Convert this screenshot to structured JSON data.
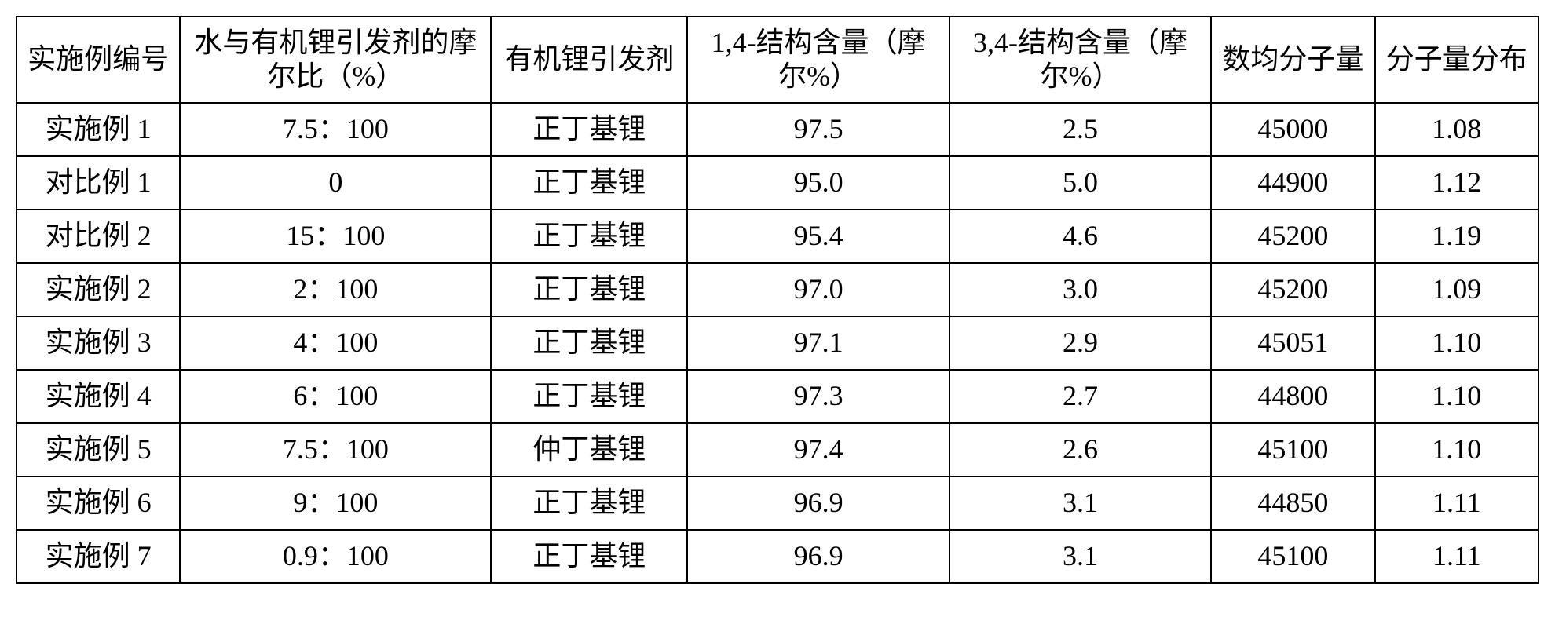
{
  "table": {
    "type": "table",
    "text_color": "#000000",
    "border_color": "#000000",
    "background_color": "#ffffff",
    "font_size_pt": 27,
    "column_widths_pct": [
      10,
      19,
      12,
      16,
      16,
      10,
      10
    ],
    "columns": [
      "实施例编号",
      "水与有机锂引发剂的摩尔比（%）",
      "有机锂引发剂",
      "1,4-结构含量（摩尔%）",
      "3,4-结构含量（摩尔%）",
      "数均分子量",
      "分子量分布"
    ],
    "rows": [
      [
        "实施例 1",
        "7.5：100",
        "正丁基锂",
        "97.5",
        "2.5",
        "45000",
        "1.08"
      ],
      [
        "对比例 1",
        "0",
        "正丁基锂",
        "95.0",
        "5.0",
        "44900",
        "1.12"
      ],
      [
        "对比例 2",
        "15：100",
        "正丁基锂",
        "95.4",
        "4.6",
        "45200",
        "1.19"
      ],
      [
        "实施例 2",
        "2：100",
        "正丁基锂",
        "97.0",
        "3.0",
        "45200",
        "1.09"
      ],
      [
        "实施例 3",
        "4：100",
        "正丁基锂",
        "97.1",
        "2.9",
        "45051",
        "1.10"
      ],
      [
        "实施例 4",
        "6：100",
        "正丁基锂",
        "97.3",
        "2.7",
        "44800",
        "1.10"
      ],
      [
        "实施例 5",
        "7.5：100",
        "仲丁基锂",
        "97.4",
        "2.6",
        "45100",
        "1.10"
      ],
      [
        "实施例 6",
        "9：100",
        "正丁基锂",
        "96.9",
        "3.1",
        "44850",
        "1.11"
      ],
      [
        "实施例 7",
        "0.9：100",
        "正丁基锂",
        "96.9",
        "3.1",
        "45100",
        "1.11"
      ]
    ]
  }
}
